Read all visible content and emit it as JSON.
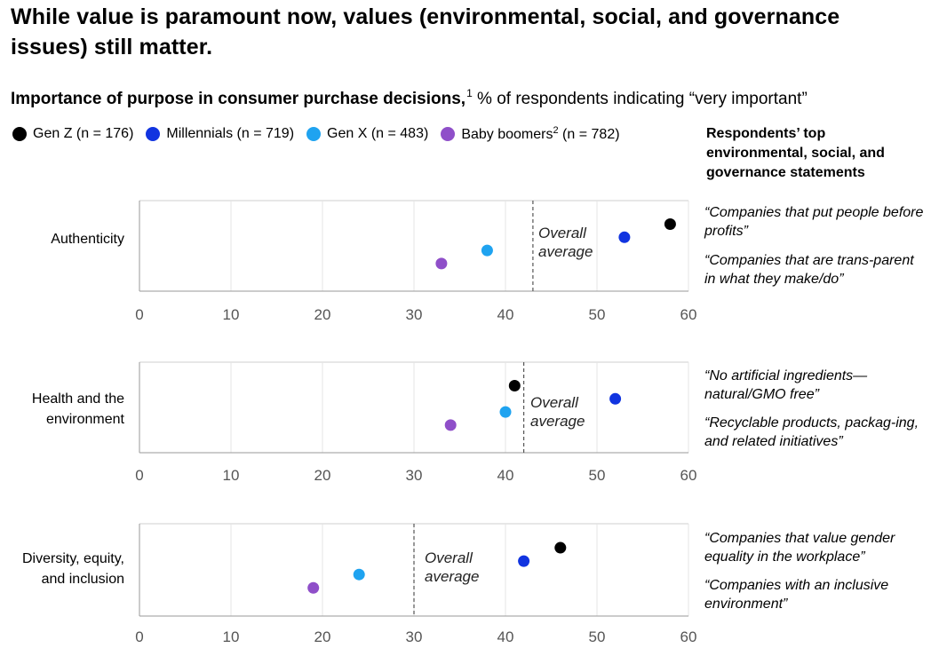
{
  "title": "While value is paramount now, values (environmental, social, and governance issues) still matter.",
  "subtitle": {
    "bold": "Importance of purpose in consumer purchase decisions,",
    "footnote": "1",
    "rest": " % of respondents indicating “very important”"
  },
  "legend": [
    {
      "name": "Gen Z",
      "label": "Gen Z (n = 176)",
      "color": "#000000"
    },
    {
      "name": "Millennials",
      "label": "Millennials (n = 719)",
      "color": "#1134e0"
    },
    {
      "name": "Gen X",
      "label": "Gen X (n = 483)",
      "color": "#1fa3f0"
    },
    {
      "name": "Baby boomers",
      "label_pre": "Baby boomers",
      "footnote": "2",
      "label_post": " (n = 782)",
      "color": "#8f4fc9"
    }
  ],
  "right_header": "Respondents’ top environmental, social, and governance statements",
  "average_label": {
    "line1": "Overall",
    "line2": "average"
  },
  "chart_data": {
    "type": "scatter",
    "title": "Importance of purpose in consumer purchase decisions",
    "xlabel": "% of respondents indicating “very important”",
    "xlim": [
      0,
      60
    ],
    "xticks": [
      0,
      10,
      20,
      30,
      40,
      50,
      60
    ],
    "grid": true,
    "series_colors": {
      "Gen Z": "#000000",
      "Millennials": "#1134e0",
      "Gen X": "#1fa3f0",
      "Baby boomers": "#8f4fc9"
    },
    "panels": [
      {
        "label": "Authenticity",
        "label_lines": [
          "Authenticity"
        ],
        "overall_average": 43,
        "values": {
          "Gen Z": 58,
          "Millennials": 53,
          "Gen X": 38,
          "Baby boomers": 33
        },
        "statements": [
          "“Companies that put people before profits”",
          "“Companies that are trans-parent in what they make/do”"
        ]
      },
      {
        "label": "Health and the environment",
        "label_lines": [
          "Health and the",
          "environment"
        ],
        "overall_average": 42,
        "values": {
          "Gen Z": 41,
          "Millennials": 52,
          "Gen X": 40,
          "Baby boomers": 34
        },
        "statements": [
          "“No artificial ingredients—natural/GMO free”",
          "“Recyclable products, packag-ing, and related initiatives”"
        ]
      },
      {
        "label": "Diversity, equity, and inclusion",
        "label_lines": [
          "Diversity, equity,",
          "and inclusion"
        ],
        "overall_average": 30,
        "values": {
          "Gen Z": 46,
          "Millennials": 42,
          "Gen X": 24,
          "Baby boomers": 19
        },
        "statements": [
          "“Companies that value gender equality in the workplace”",
          "“Companies with an inclusive environment”"
        ]
      }
    ]
  }
}
